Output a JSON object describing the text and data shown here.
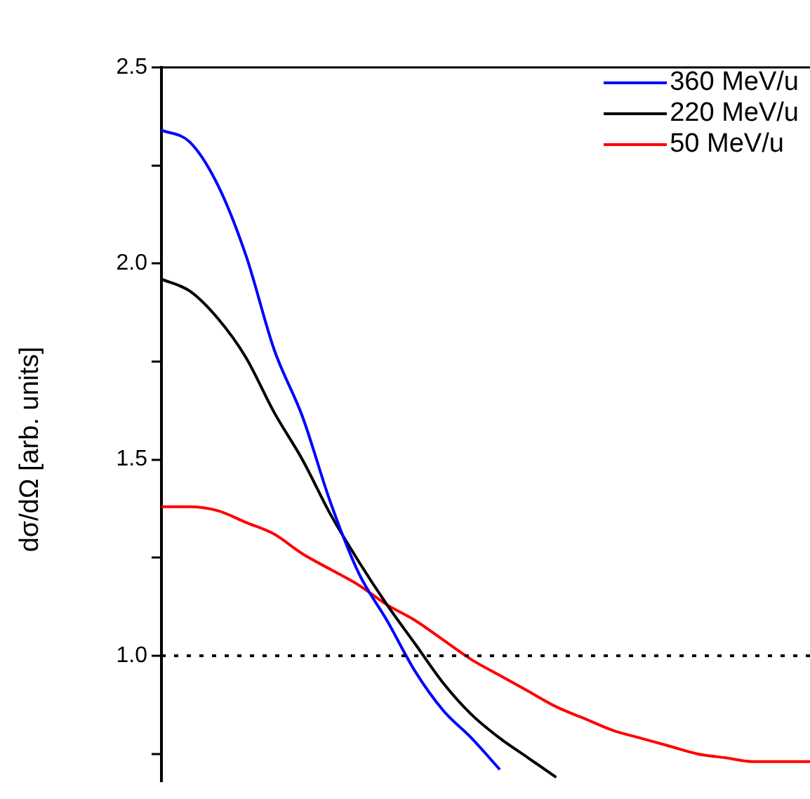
{
  "chart_data": {
    "type": "line",
    "ylabel": "dσ/dΩ [arb. units]",
    "legend": "top right",
    "tick_labels": "y",
    "categories": [
      null,
      null,
      null,
      null,
      null,
      null,
      null,
      null,
      null,
      null,
      null,
      null,
      null,
      null,
      null,
      null,
      null,
      null,
      null,
      null,
      null,
      null,
      null,
      null
    ],
    "ylim": [
      0.68,
      2.5
    ],
    "yticks": [
      {
        "value": 0.75,
        "label": null
      },
      {
        "value": 1,
        "label": "1.0"
      },
      {
        "value": 1.25,
        "label": null
      },
      {
        "value": 1.5,
        "label": "1.5"
      },
      {
        "value": 1.75,
        "label": null
      },
      {
        "value": 2,
        "label": "2.0"
      },
      {
        "value": 2.25,
        "label": null
      },
      {
        "value": 2.5,
        "label": "2.5"
      }
    ],
    "ref_lines": [
      {
        "axis": "y",
        "value": 1,
        "line_style": "dotted",
        "color": "#000000"
      }
    ],
    "series": [
      {
        "name": "360 MeV/u",
        "color": "#0000ff",
        "values": [
          2.34,
          2.31,
          2.2,
          2.02,
          1.78,
          1.61,
          1.39,
          1.21,
          1.09,
          0.96,
          0.86,
          0.79,
          0.71,
          null,
          null,
          null,
          null,
          null,
          null,
          null,
          null,
          null,
          null,
          null
        ]
      },
      {
        "name": "220 MeV/u",
        "color": "#000000",
        "values": [
          1.96,
          1.93,
          1.86,
          1.76,
          1.62,
          1.5,
          1.36,
          1.24,
          1.13,
          1.03,
          0.93,
          0.85,
          0.79,
          0.74,
          0.69,
          null,
          null,
          null,
          null,
          null,
          null,
          null,
          null,
          null
        ]
      },
      {
        "name": "50 MeV/u",
        "color": "#ff0000",
        "values": [
          1.38,
          1.38,
          1.37,
          1.34,
          1.31,
          1.26,
          1.22,
          1.18,
          1.13,
          1.09,
          1.04,
          0.99,
          0.95,
          0.91,
          0.87,
          0.84,
          0.81,
          0.79,
          0.77,
          0.75,
          0.74,
          0.73,
          0.73,
          0.73
        ]
      }
    ]
  }
}
